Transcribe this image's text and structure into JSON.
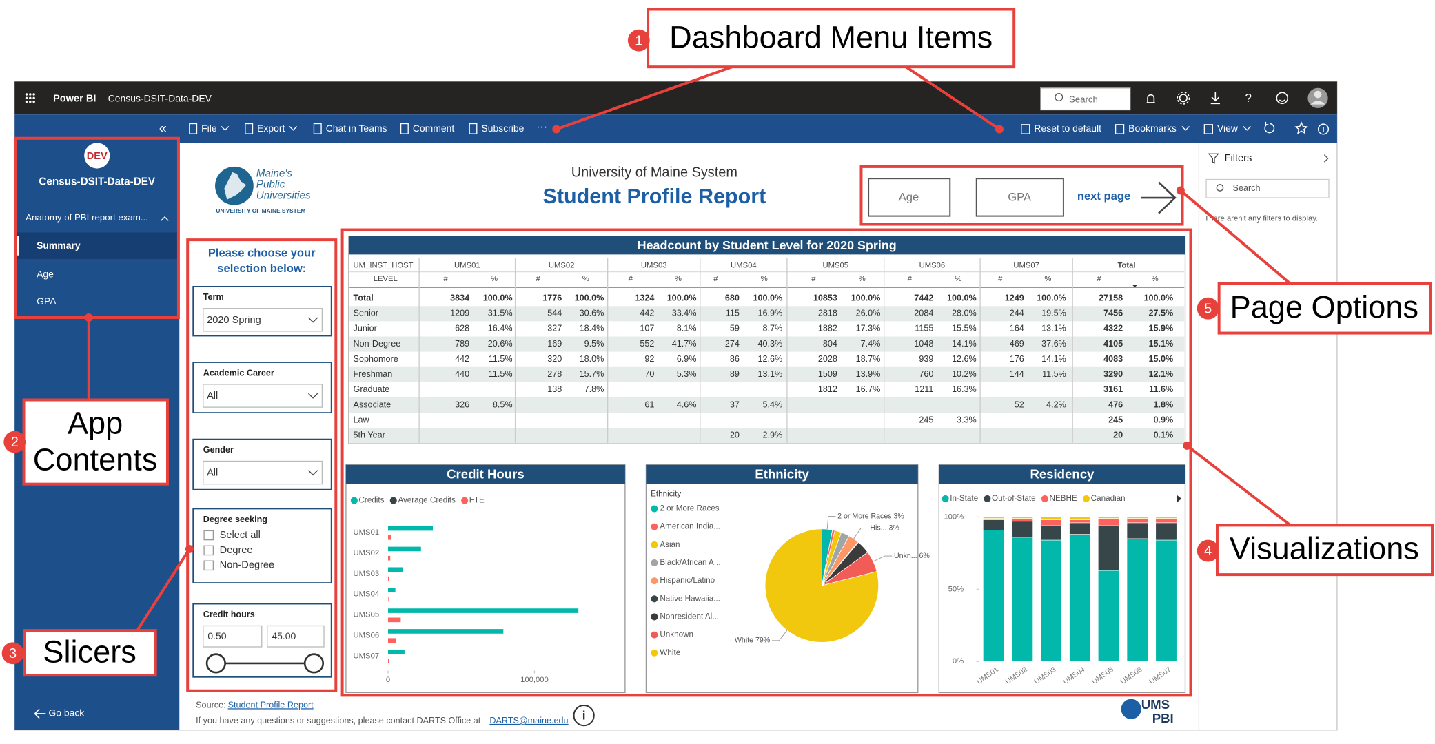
{
  "annotations": [
    {
      "number": "1",
      "lines": [
        "Dashboard Menu Items"
      ]
    },
    {
      "number": "2",
      "lines": [
        "App",
        "Contents"
      ]
    },
    {
      "number": "3",
      "lines": [
        "Slicers"
      ]
    },
    {
      "number": "4",
      "lines": [
        "Visualizations"
      ]
    },
    {
      "number": "5",
      "lines": [
        "Page Options"
      ]
    }
  ],
  "topbar": {
    "app": "Power BI",
    "workspace": "Census-DSIT-Data-DEV",
    "search": "Search"
  },
  "menu": {
    "left": [
      "File",
      "Export",
      "Chat in Teams",
      "Comment",
      "Subscribe"
    ],
    "right": [
      "Reset to default",
      "Bookmarks",
      "View"
    ]
  },
  "nav": {
    "badge": "DEV",
    "title": "Census-DSIT-Data-DEV",
    "section": "Anatomy of PBI report exam...",
    "pages": [
      "Summary",
      "Age",
      "GPA"
    ],
    "back": "Go back"
  },
  "filters": {
    "title": "Filters",
    "search": "Search",
    "empty": "There aren't any filters to display."
  },
  "report": {
    "logo": {
      "lines": [
        "Maine's",
        "Public",
        "Universities"
      ],
      "sub": "UNIVERSITY OF MAINE SYSTEM"
    },
    "org": "University of Maine System",
    "title": "Student Profile Report",
    "buttons": [
      "Age",
      "GPA"
    ],
    "next": "next page",
    "prompt": [
      "Please choose your",
      "selection below:"
    ],
    "slicers": [
      {
        "title": "Term",
        "value": "2020 Spring"
      },
      {
        "title": "Academic Career",
        "value": "All"
      },
      {
        "title": "Gender",
        "value": "All"
      },
      {
        "title": "Degree seeking",
        "options": [
          "Select all",
          "Degree",
          "Non-Degree"
        ]
      },
      {
        "title": "Credit hours",
        "range": [
          "0.50",
          "45.00"
        ]
      }
    ],
    "footer": {
      "source_label": "Source:",
      "source_link": "Student Profile Report",
      "contact": "If you have any questions or suggestions, please contact DARTS Office at",
      "email": "DARTS@maine.edu"
    },
    "ums_logo": [
      "UMS",
      "PBI"
    ]
  },
  "table": {
    "title": "Headcount by Student Level for 2020 Spring",
    "corner": [
      "UM_INST_HOST",
      "LEVEL"
    ],
    "columns": [
      "UMS01",
      "UMS02",
      "UMS03",
      "UMS04",
      "UMS05",
      "UMS06",
      "UMS07",
      "Total"
    ],
    "subheaders": [
      "#",
      "%"
    ],
    "rows": [
      {
        "level": "Total",
        "cells": [
          3834,
          "100.0%",
          1776,
          "100.0%",
          1324,
          "100.0%",
          680,
          "100.0%",
          10853,
          "100.0%",
          7442,
          "100.0%",
          1249,
          "100.0%",
          27158,
          "100.0%"
        ]
      },
      {
        "level": "Senior",
        "cells": [
          1209,
          "31.5%",
          544,
          "30.6%",
          442,
          "33.4%",
          115,
          "16.9%",
          2818,
          "26.0%",
          2084,
          "28.0%",
          244,
          "19.5%",
          7456,
          "27.5%"
        ]
      },
      {
        "level": "Junior",
        "cells": [
          628,
          "16.4%",
          327,
          "18.4%",
          107,
          "8.1%",
          59,
          "8.7%",
          1882,
          "17.3%",
          1155,
          "15.5%",
          164,
          "13.1%",
          4322,
          "15.9%"
        ]
      },
      {
        "level": "Non-Degree",
        "cells": [
          789,
          "20.6%",
          169,
          "9.5%",
          552,
          "41.7%",
          274,
          "40.3%",
          804,
          "7.4%",
          1048,
          "14.1%",
          469,
          "37.6%",
          4105,
          "15.1%"
        ]
      },
      {
        "level": "Sophomore",
        "cells": [
          442,
          "11.5%",
          320,
          "18.0%",
          92,
          "6.9%",
          86,
          "12.6%",
          2028,
          "18.7%",
          939,
          "12.6%",
          176,
          "14.1%",
          4083,
          "15.0%"
        ]
      },
      {
        "level": "Freshman",
        "cells": [
          440,
          "11.5%",
          278,
          "15.7%",
          70,
          "5.3%",
          89,
          "13.1%",
          1509,
          "13.9%",
          760,
          "10.2%",
          144,
          "11.5%",
          3290,
          "12.1%"
        ]
      },
      {
        "level": "Graduate",
        "cells": [
          null,
          null,
          138,
          "7.8%",
          null,
          null,
          null,
          null,
          1812,
          "16.7%",
          1211,
          "16.3%",
          null,
          null,
          3161,
          "11.6%"
        ]
      },
      {
        "level": "Associate",
        "cells": [
          326,
          "8.5%",
          null,
          null,
          61,
          "4.6%",
          37,
          "5.4%",
          null,
          null,
          null,
          null,
          52,
          "4.2%",
          476,
          "1.8%"
        ]
      },
      {
        "level": "Law",
        "cells": [
          null,
          null,
          null,
          null,
          null,
          null,
          null,
          null,
          null,
          null,
          245,
          "3.3%",
          null,
          null,
          245,
          "0.9%"
        ]
      },
      {
        "level": "5th Year",
        "cells": [
          null,
          null,
          null,
          null,
          null,
          null,
          20,
          "2.9%",
          null,
          null,
          null,
          null,
          null,
          null,
          20,
          "0.1%"
        ]
      }
    ]
  },
  "chart_data": [
    {
      "type": "hbar",
      "title": "Credit Hours",
      "categories": [
        "UMS01",
        "UMS02",
        "UMS03",
        "UMS04",
        "UMS05",
        "UMS06",
        "UMS07"
      ],
      "series": [
        {
          "name": "Credits",
          "color": "#01b8aa",
          "values": [
            30600,
            22500,
            10000,
            5000,
            130000,
            78750,
            11250
          ]
        },
        {
          "name": "Average Credits",
          "color": "#374649",
          "values": [
            12,
            12,
            11,
            10,
            12,
            12,
            10
          ]
        },
        {
          "name": "FTE",
          "color": "#fd625e",
          "values": [
            2040,
            1500,
            670,
            330,
            8670,
            5250,
            750
          ]
        }
      ],
      "xlim": [
        0,
        135000
      ],
      "xticks": [
        0,
        {
          "value": 100000,
          "label": "100,000"
        }
      ]
    },
    {
      "type": "pie",
      "title": "Ethnicity",
      "legend_title": "Ethnicity",
      "categories": [
        "2 or More Races",
        "American India...",
        "Asian",
        "Black/African A...",
        "Hispanic/Latino",
        "Native Hawaiia...",
        "Nonresident Al...",
        "Unknown",
        "White"
      ],
      "colors": [
        "#01b8aa",
        "#fd625e",
        "#f2c80f",
        "#a0a6a8",
        "#fe9666",
        "#374649",
        "#3b3b3b",
        "#f25c57",
        "#f2c80f"
      ],
      "values": [
        3,
        0.7,
        1.9,
        2.4,
        3,
        0.2,
        3.8,
        6,
        79
      ],
      "value_labels": [
        "2 or More Races 3%",
        null,
        null,
        null,
        "His... 3%",
        null,
        null,
        "Unkn... 6%",
        "White 79%"
      ]
    },
    {
      "type": "stacked_bar",
      "title": "Residency",
      "categories": [
        "UMS01",
        "UMS02",
        "UMS03",
        "UMS04",
        "UMS05",
        "UMS06",
        "UMS07"
      ],
      "series": [
        {
          "name": "In-State",
          "color": "#01b8aa",
          "values": [
            91,
            86,
            84,
            88,
            63,
            85,
            84
          ]
        },
        {
          "name": "Out-of-State",
          "color": "#374649",
          "values": [
            7,
            11,
            10,
            8,
            31,
            11,
            12
          ]
        },
        {
          "name": "NEBHE",
          "color": "#fd625e",
          "values": [
            1,
            2,
            4,
            2,
            5,
            3,
            3
          ]
        },
        {
          "name": "Canadian",
          "color": "#f2c80f",
          "values": [
            1,
            1,
            2,
            2,
            1,
            1,
            1
          ]
        }
      ],
      "ylim": [
        0,
        100
      ],
      "yticks": [
        {
          "value": 0,
          "label": "0%"
        },
        {
          "value": 50,
          "label": "50%"
        },
        {
          "value": 100,
          "label": "100%"
        }
      ]
    }
  ]
}
